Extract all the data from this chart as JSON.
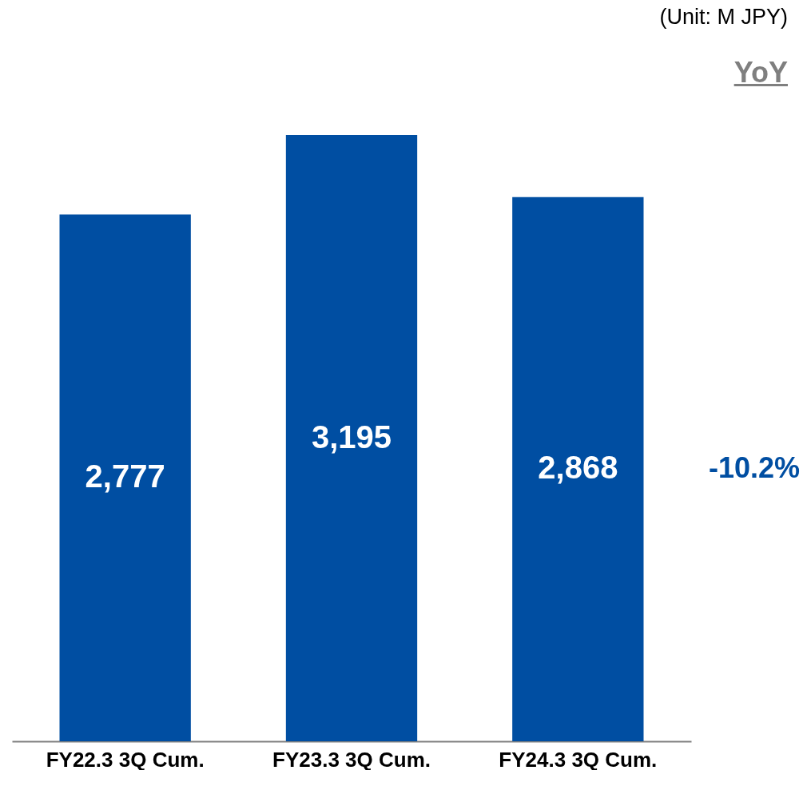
{
  "chart_data": {
    "type": "bar",
    "categories": [
      "FY22.3 3Q Cum.",
      "FY23.3 3Q Cum.",
      "FY24.3 3Q Cum."
    ],
    "values": [
      2777,
      3195,
      2868
    ],
    "color": "#004ea2",
    "value_labels": [
      "2,777",
      "3,195",
      "2,868"
    ],
    "annotations": [
      "(Unit: M JPY)",
      "YoY",
      "-10.2%"
    ]
  }
}
